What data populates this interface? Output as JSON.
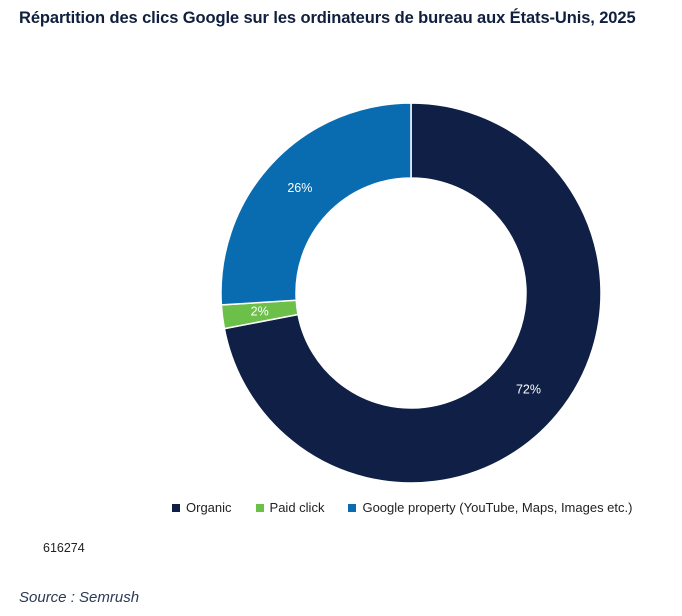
{
  "chart_data": {
    "type": "pie",
    "variant": "donut",
    "title": "Répartition des clics Google sur les ordinateurs de bureau aux États-Unis, 2025",
    "categories": [
      "Organic",
      "Paid click",
      "Google property (YouTube, Maps, Images etc.)"
    ],
    "values": [
      72,
      2,
      26
    ],
    "labels": [
      "72%",
      "2%",
      "26%"
    ],
    "colors": [
      "#0f1f45",
      "#6cc04a",
      "#0a6cb0"
    ],
    "legend_position": "bottom-right"
  },
  "chart_id": "616274",
  "source": "Source : Semrush"
}
